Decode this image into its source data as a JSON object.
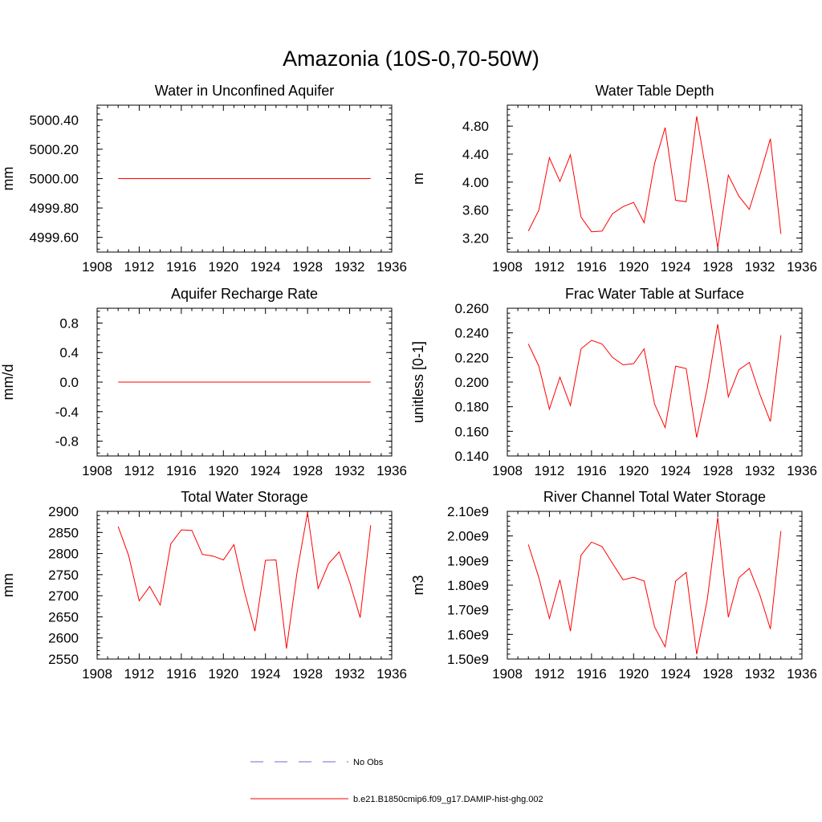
{
  "figure": {
    "title": "Amazonia (10S-0,70-50W)",
    "legend": [
      {
        "label": "No Obs",
        "color": "#6b6bd6",
        "dashed": true
      },
      {
        "label": "b.e21.B1850cmip6.f09_g17.DAMIP-hist-ghg.002",
        "color": "#ff0000",
        "dashed": false
      }
    ]
  },
  "chart_data": [
    {
      "type": "line",
      "title": "Water in Unconfined Aquifer",
      "ylabel": "mm",
      "xlim": [
        1908,
        1936
      ],
      "ylim": [
        4999.5,
        5000.5
      ],
      "x_ticks": [
        "1908",
        "1912",
        "1916",
        "1920",
        "1924",
        "1928",
        "1932",
        "1936"
      ],
      "y_ticks": [
        {
          "v": 4999.6,
          "label": "4999.60"
        },
        {
          "v": 4999.8,
          "label": "4999.80"
        },
        {
          "v": 5000.0,
          "label": "5000.00"
        },
        {
          "v": 5000.2,
          "label": "5000.20"
        },
        {
          "v": 5000.4,
          "label": "5000.40"
        }
      ],
      "x": [
        1910,
        1911,
        1912,
        1913,
        1914,
        1915,
        1916,
        1917,
        1918,
        1919,
        1920,
        1921,
        1922,
        1923,
        1924,
        1925,
        1926,
        1927,
        1928,
        1929,
        1930,
        1931,
        1932,
        1933,
        1934
      ],
      "series": [
        {
          "color": "#ff0000",
          "values": [
            5000,
            5000,
            5000,
            5000,
            5000,
            5000,
            5000,
            5000,
            5000,
            5000,
            5000,
            5000,
            5000,
            5000,
            5000,
            5000,
            5000,
            5000,
            5000,
            5000,
            5000,
            5000,
            5000,
            5000,
            5000
          ]
        }
      ]
    },
    {
      "type": "line",
      "title": "Water Table Depth",
      "ylabel": "m",
      "xlim": [
        1908,
        1936
      ],
      "ylim": [
        3.0,
        5.1
      ],
      "x_ticks": [
        "1908",
        "1912",
        "1916",
        "1920",
        "1924",
        "1928",
        "1932",
        "1936"
      ],
      "y_ticks": [
        {
          "v": 3.2,
          "label": "3.20"
        },
        {
          "v": 3.6,
          "label": "3.60"
        },
        {
          "v": 4.0,
          "label": "4.00"
        },
        {
          "v": 4.4,
          "label": "4.40"
        },
        {
          "v": 4.8,
          "label": "4.80"
        }
      ],
      "x": [
        1910,
        1911,
        1912,
        1913,
        1914,
        1915,
        1916,
        1917,
        1918,
        1919,
        1920,
        1921,
        1922,
        1923,
        1924,
        1925,
        1926,
        1927,
        1928,
        1929,
        1930,
        1931,
        1932,
        1933,
        1934
      ],
      "series": [
        {
          "color": "#ff0000",
          "values": [
            3.3,
            3.6,
            4.35,
            4.01,
            4.39,
            3.5,
            3.29,
            3.3,
            3.55,
            3.65,
            3.71,
            3.42,
            4.27,
            4.78,
            3.74,
            3.72,
            4.94,
            4.06,
            3.06,
            4.1,
            3.8,
            3.61,
            4.1,
            4.62,
            3.26
          ]
        }
      ]
    },
    {
      "type": "line",
      "title": "Aquifer Recharge Rate",
      "ylabel": "mm/d",
      "xlim": [
        1908,
        1936
      ],
      "ylim": [
        -1.0,
        1.0
      ],
      "x_ticks": [
        "1908",
        "1912",
        "1916",
        "1920",
        "1924",
        "1928",
        "1932",
        "1936"
      ],
      "y_ticks": [
        {
          "v": -0.8,
          "label": "-0.8"
        },
        {
          "v": -0.4,
          "label": "-0.4"
        },
        {
          "v": 0.0,
          "label": "0.0"
        },
        {
          "v": 0.4,
          "label": "0.4"
        },
        {
          "v": 0.8,
          "label": "0.8"
        }
      ],
      "x": [
        1910,
        1911,
        1912,
        1913,
        1914,
        1915,
        1916,
        1917,
        1918,
        1919,
        1920,
        1921,
        1922,
        1923,
        1924,
        1925,
        1926,
        1927,
        1928,
        1929,
        1930,
        1931,
        1932,
        1933,
        1934
      ],
      "series": [
        {
          "color": "#ff0000",
          "values": [
            0,
            0,
            0,
            0,
            0,
            0,
            0,
            0,
            0,
            0,
            0,
            0,
            0,
            0,
            0,
            0,
            0,
            0,
            0,
            0,
            0,
            0,
            0,
            0,
            0
          ]
        }
      ]
    },
    {
      "type": "line",
      "title": "Frac Water Table at Surface",
      "ylabel": "unitless [0-1]",
      "xlim": [
        1908,
        1936
      ],
      "ylim": [
        0.14,
        0.26
      ],
      "x_ticks": [
        "1908",
        "1912",
        "1916",
        "1920",
        "1924",
        "1928",
        "1932",
        "1936"
      ],
      "y_ticks": [
        {
          "v": 0.14,
          "label": "0.140"
        },
        {
          "v": 0.16,
          "label": "0.160"
        },
        {
          "v": 0.18,
          "label": "0.180"
        },
        {
          "v": 0.2,
          "label": "0.200"
        },
        {
          "v": 0.22,
          "label": "0.220"
        },
        {
          "v": 0.24,
          "label": "0.240"
        },
        {
          "v": 0.26,
          "label": "0.260"
        }
      ],
      "x": [
        1910,
        1911,
        1912,
        1913,
        1914,
        1915,
        1916,
        1917,
        1918,
        1919,
        1920,
        1921,
        1922,
        1923,
        1924,
        1925,
        1926,
        1927,
        1928,
        1929,
        1930,
        1931,
        1932,
        1933,
        1934
      ],
      "series": [
        {
          "color": "#ff0000",
          "values": [
            0.231,
            0.213,
            0.178,
            0.204,
            0.181,
            0.227,
            0.234,
            0.231,
            0.22,
            0.214,
            0.215,
            0.227,
            0.182,
            0.163,
            0.213,
            0.211,
            0.155,
            0.195,
            0.247,
            0.188,
            0.21,
            0.216,
            0.19,
            0.168,
            0.238
          ]
        }
      ]
    },
    {
      "type": "line",
      "title": "Total Water Storage",
      "ylabel": "mm",
      "xlim": [
        1908,
        1936
      ],
      "ylim": [
        2550,
        2900
      ],
      "x_ticks": [
        "1908",
        "1912",
        "1916",
        "1920",
        "1924",
        "1928",
        "1932",
        "1936"
      ],
      "y_ticks": [
        {
          "v": 2550,
          "label": "2550"
        },
        {
          "v": 2600,
          "label": "2600"
        },
        {
          "v": 2650,
          "label": "2650"
        },
        {
          "v": 2700,
          "label": "2700"
        },
        {
          "v": 2750,
          "label": "2750"
        },
        {
          "v": 2800,
          "label": "2800"
        },
        {
          "v": 2850,
          "label": "2850"
        },
        {
          "v": 2900,
          "label": "2900"
        }
      ],
      "x": [
        1910,
        1911,
        1912,
        1913,
        1914,
        1915,
        1916,
        1917,
        1918,
        1919,
        1920,
        1921,
        1922,
        1923,
        1924,
        1925,
        1926,
        1927,
        1928,
        1929,
        1930,
        1931,
        1932,
        1933,
        1934
      ],
      "series": [
        {
          "color": "#ff0000",
          "values": [
            2864,
            2795,
            2688,
            2722,
            2678,
            2823,
            2856,
            2855,
            2798,
            2794,
            2785,
            2821,
            2710,
            2616,
            2784,
            2785,
            2575,
            2755,
            2897,
            2717,
            2776,
            2804,
            2732,
            2648,
            2867
          ]
        }
      ]
    },
    {
      "type": "line",
      "title": "River Channel Total Water Storage",
      "ylabel": "m3",
      "xlim": [
        1908,
        1936
      ],
      "ylim": [
        1500000000.0,
        2100000000.0
      ],
      "x_ticks": [
        "1908",
        "1912",
        "1916",
        "1920",
        "1924",
        "1928",
        "1932",
        "1936"
      ],
      "y_ticks": [
        {
          "v": 1500000000.0,
          "label": "1.50e9"
        },
        {
          "v": 1600000000.0,
          "label": "1.60e9"
        },
        {
          "v": 1700000000.0,
          "label": "1.70e9"
        },
        {
          "v": 1800000000.0,
          "label": "1.80e9"
        },
        {
          "v": 1900000000.0,
          "label": "1.90e9"
        },
        {
          "v": 2000000000.0,
          "label": "2.00e9"
        },
        {
          "v": 2100000000.0,
          "label": "2.10e9"
        }
      ],
      "x": [
        1910,
        1911,
        1912,
        1913,
        1914,
        1915,
        1916,
        1917,
        1918,
        1919,
        1920,
        1921,
        1922,
        1923,
        1924,
        1925,
        1926,
        1927,
        1928,
        1929,
        1930,
        1931,
        1932,
        1933,
        1934
      ],
      "series": [
        {
          "color": "#ff0000",
          "values": [
            1965000000.0,
            1830000000.0,
            1665000000.0,
            1822000000.0,
            1613000000.0,
            1922000000.0,
            1975000000.0,
            1957000000.0,
            1888000000.0,
            1822000000.0,
            1832000000.0,
            1817000000.0,
            1630000000.0,
            1550000000.0,
            1817000000.0,
            1852000000.0,
            1520000000.0,
            1740000000.0,
            2075000000.0,
            1670000000.0,
            1830000000.0,
            1868000000.0,
            1760000000.0,
            1622000000.0,
            2020000000.0
          ]
        }
      ]
    }
  ]
}
